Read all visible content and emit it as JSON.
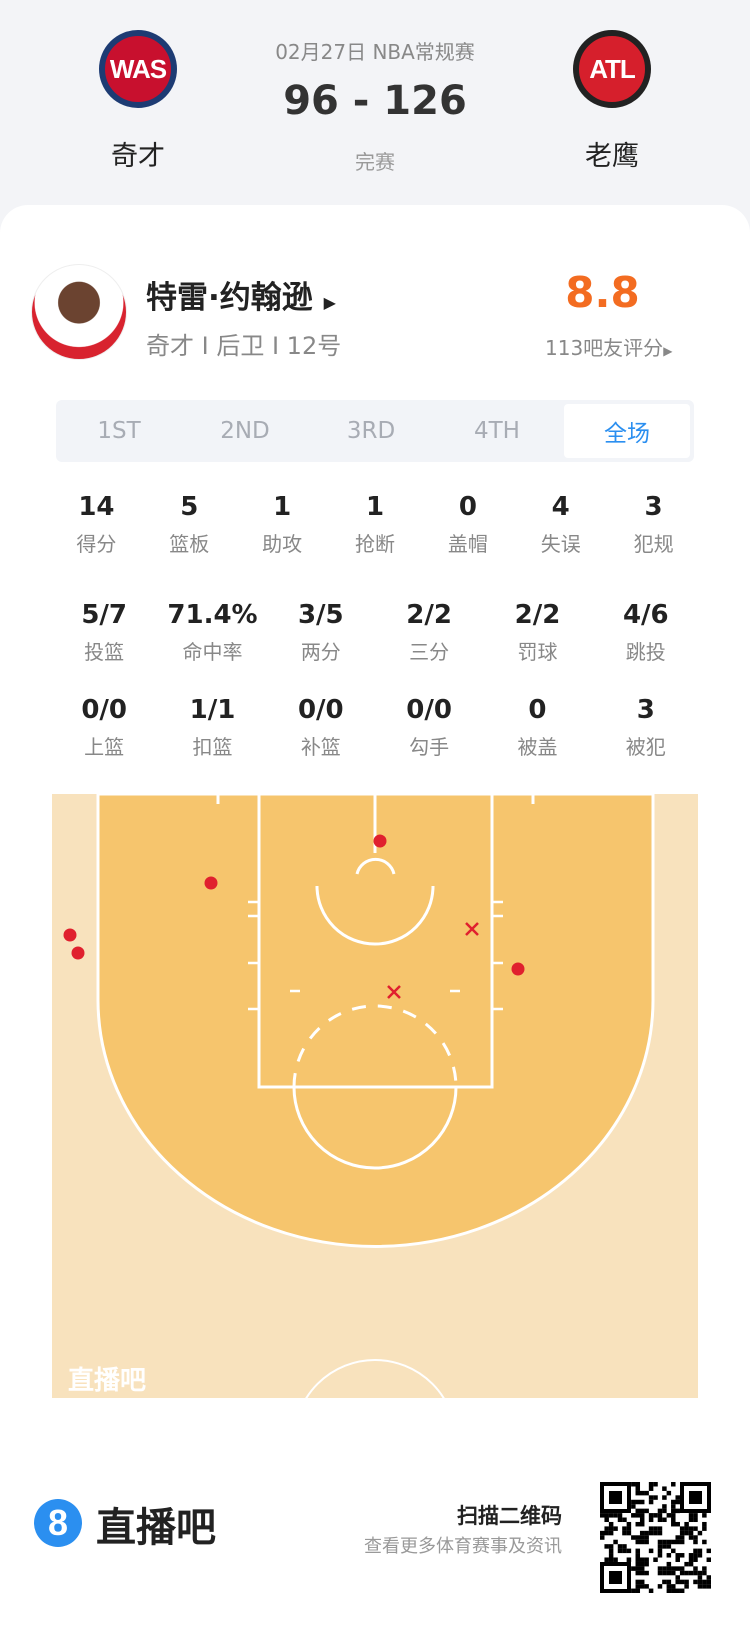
{
  "header": {
    "date_league": "02月27日 NBA常规赛",
    "score": "96 - 126",
    "status": "完赛",
    "home": {
      "abbr": "WAS",
      "name": "奇才",
      "color": "#c8102e",
      "ring": "#1d3b73"
    },
    "away": {
      "abbr": "ATL",
      "name": "老鹰",
      "color": "#d61f2c"
    }
  },
  "player": {
    "name": "特雷·约翰逊",
    "info": "奇才 I 后卫 I 12号",
    "rating": "8.8",
    "rating_count": "113吧友评分",
    "rating_color": "#f36c21",
    "avatar_icon": "player-photo"
  },
  "tabs": [
    {
      "label": "1ST"
    },
    {
      "label": "2ND"
    },
    {
      "label": "3RD"
    },
    {
      "label": "4TH"
    },
    {
      "label": "全场",
      "active": true
    }
  ],
  "stats_rows": [
    [
      {
        "v": "14",
        "l": "得分"
      },
      {
        "v": "5",
        "l": "篮板"
      },
      {
        "v": "1",
        "l": "助攻"
      },
      {
        "v": "1",
        "l": "抢断"
      },
      {
        "v": "0",
        "l": "盖帽"
      },
      {
        "v": "4",
        "l": "失误"
      },
      {
        "v": "3",
        "l": "犯规"
      }
    ],
    [
      {
        "v": "5/7",
        "l": "投篮"
      },
      {
        "v": "71.4%",
        "l": "命中率"
      },
      {
        "v": "3/5",
        "l": "两分"
      },
      {
        "v": "2/2",
        "l": "三分"
      },
      {
        "v": "2/2",
        "l": "罚球"
      },
      {
        "v": "4/6",
        "l": "跳投"
      }
    ],
    [
      {
        "v": "0/0",
        "l": "上篮"
      },
      {
        "v": "1/1",
        "l": "扣篮"
      },
      {
        "v": "0/0",
        "l": "补篮"
      },
      {
        "v": "0/0",
        "l": "勾手"
      },
      {
        "v": "0",
        "l": "被盖"
      },
      {
        "v": "3",
        "l": "被犯"
      }
    ]
  ],
  "shot_chart": {
    "watermark": "直播吧",
    "made_color": "#e0202e",
    "miss_color": "#e0202e",
    "shots": [
      {
        "result": "made"
      },
      {
        "result": "made"
      },
      {
        "result": "made"
      },
      {
        "result": "made"
      },
      {
        "result": "made"
      },
      {
        "result": "miss"
      },
      {
        "result": "miss"
      }
    ]
  },
  "footer": {
    "brand": "直播吧",
    "brand_color": "#2b8ff0",
    "qr_title": "扫描二维码",
    "qr_sub": "查看更多体育赛事及资讯"
  }
}
